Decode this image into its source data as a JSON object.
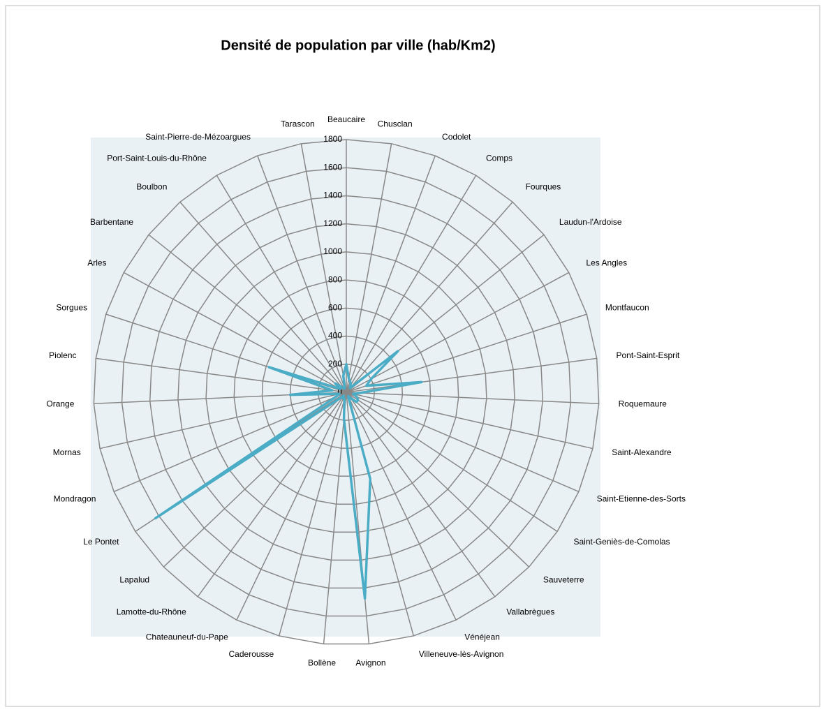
{
  "chart_data": {
    "type": "radar",
    "title": "Densité de population par ville (hab/Km2)",
    "categories": [
      "Beaucaire",
      "Chusclan",
      "Codolet",
      "Comps",
      "Fourques",
      "Laudun-l'Ardoise",
      "Les Angles",
      "Montfaucon",
      "Pont-Saint-Esprit",
      "Roquemaure",
      "Saint-Alexandre",
      "Saint-Etienne-des-Sorts",
      "Saint-Geniès-de-Comolas",
      "Sauveterre",
      "Vallabrègues",
      "Vénéjean",
      "Villeneuve-lès-Avignon",
      "Avignon",
      "Bollène",
      "Caderousse",
      "Chateauneuf-du-Pape",
      "Lamotte-du-Rhône",
      "Lapalud",
      "Le Pontet",
      "Mondragon",
      "Mornas",
      "Orange",
      "Piolenc",
      "Sorgues",
      "Arles",
      "Barbentane",
      "Boulbon",
      "Port-Saint-Louis-du-Rhône",
      "Saint-Pierre-de-Mézoargues",
      "Tarascon"
    ],
    "series": [
      {
        "color": "#4bacc6",
        "values": [
          200,
          100,
          80,
          60,
          40,
          470,
          200,
          150,
          540,
          100,
          50,
          80,
          100,
          100,
          50,
          30,
          640,
          1475,
          190,
          50,
          50,
          30,
          60,
          1630,
          80,
          50,
          400,
          100,
          580,
          50,
          100,
          50,
          30,
          30,
          120
        ]
      }
    ],
    "ylim": [
      0,
      1800
    ],
    "yticks": [
      0,
      200,
      400,
      600,
      800,
      1000,
      1200,
      1400,
      1600,
      1800
    ],
    "grid": true
  }
}
